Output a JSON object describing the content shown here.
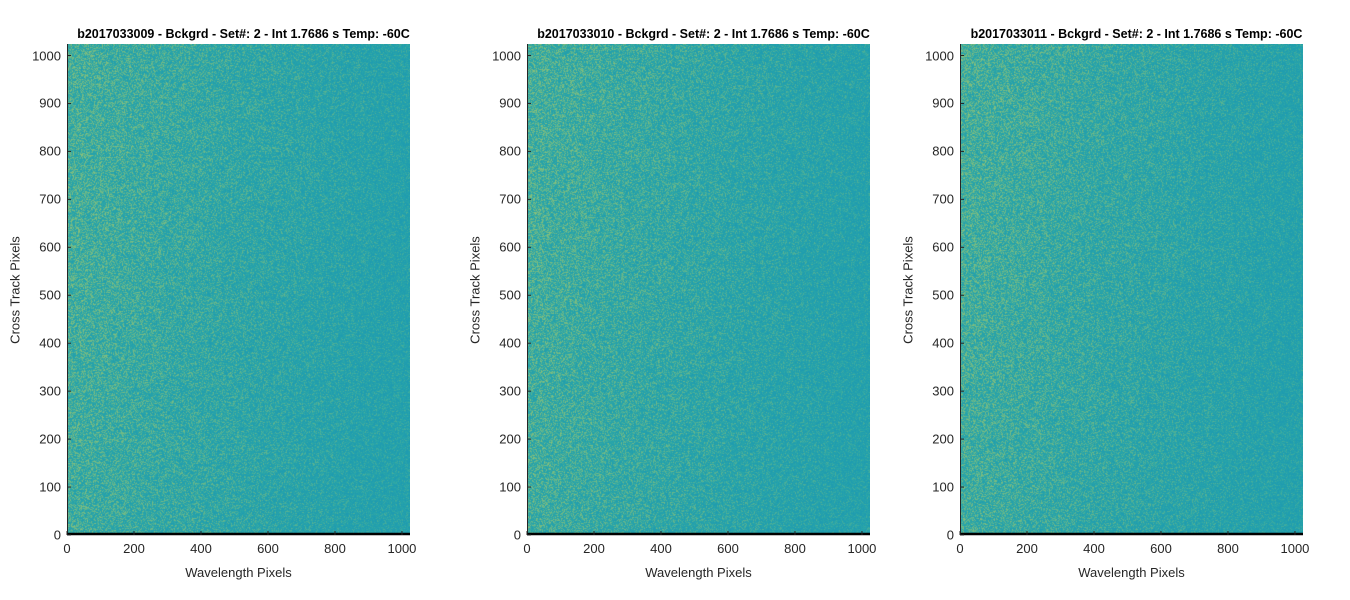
{
  "chart_data": [
    {
      "type": "heatmap",
      "title": "b2017033009 - Bckgrd - Set#: 2 - Int 1.7686 s Temp: -60C",
      "xlabel": "Wavelength Pixels",
      "ylabel": "Cross Track Pixels",
      "xlim": [
        0,
        1024
      ],
      "ylim": [
        0,
        1024
      ],
      "xticks": [
        0,
        200,
        400,
        600,
        800,
        1000
      ],
      "yticks": [
        0,
        100,
        200,
        300,
        400,
        500,
        600,
        700,
        800,
        900,
        1000
      ],
      "colormap": "parula",
      "description_of_values": "noise background; slightly higher (yellow-green) toward low wavelength pixels, teal elsewhere"
    },
    {
      "type": "heatmap",
      "title": "b2017033010 - Bckgrd - Set#: 2 - Int 1.7686 s Temp: -60C",
      "xlabel": "Wavelength Pixels",
      "ylabel": "Cross Track Pixels",
      "xlim": [
        0,
        1024
      ],
      "ylim": [
        0,
        1024
      ],
      "xticks": [
        0,
        200,
        400,
        600,
        800,
        1000
      ],
      "yticks": [
        0,
        100,
        200,
        300,
        400,
        500,
        600,
        700,
        800,
        900,
        1000
      ],
      "colormap": "parula"
    },
    {
      "type": "heatmap",
      "title": "b2017033011 - Bckgrd - Set#: 2 - Int 1.7686 s Temp: -60C",
      "xlabel": "Wavelength Pixels",
      "ylabel": "Cross Track Pixels",
      "xlim": [
        0,
        1024
      ],
      "ylim": [
        0,
        1024
      ],
      "xticks": [
        0,
        200,
        400,
        600,
        800,
        1000
      ],
      "yticks": [
        0,
        100,
        200,
        300,
        400,
        500,
        600,
        700,
        800,
        900,
        1000
      ],
      "colormap": "parula"
    }
  ],
  "colors": {
    "base": "#2aa6a8",
    "warm": "#8cc178",
    "cool": "#1f9cb0",
    "axis": "#262626",
    "bottom_axis": "#000000"
  }
}
